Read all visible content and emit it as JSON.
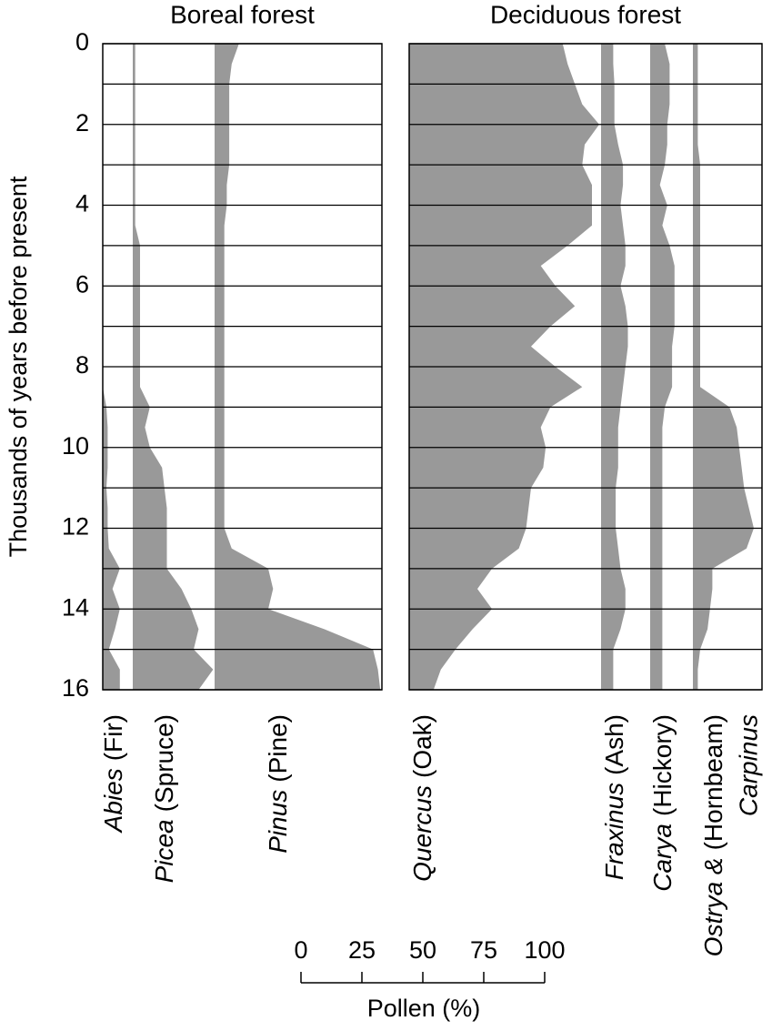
{
  "chart_data": {
    "type": "pollen",
    "ylabel": "Thousands of years before present",
    "xlabel": "Pollen (%)",
    "ylim": [
      0,
      16
    ],
    "yticks": [
      0,
      2,
      4,
      6,
      8,
      10,
      12,
      14,
      16
    ],
    "minor_yticks": [
      1,
      3,
      5,
      7,
      9,
      11,
      13,
      15
    ],
    "xlim": [
      0,
      100
    ],
    "xticks": [
      0,
      25,
      50,
      75,
      100
    ],
    "color": "#999999",
    "ages": [
      0,
      0.5,
      1,
      1.5,
      2,
      2.5,
      3,
      3.5,
      4,
      4.5,
      5,
      5.5,
      6,
      6.5,
      7,
      7.5,
      8,
      8.5,
      9,
      9.5,
      10,
      10.5,
      11,
      11.5,
      12,
      12.5,
      13,
      13.5,
      14,
      14.5,
      15,
      15.5,
      16
    ],
    "panels": [
      {
        "title": "Boreal forest",
        "taxa": [
          {
            "genus": "Abies",
            "common": "(Fir)",
            "values": [
              0,
              0,
              0,
              0,
              0,
              0,
              0,
              0,
              0,
              0,
              0,
              0,
              0,
              0,
              0,
              0,
              0,
              0,
              1.5,
              2,
              2,
              2,
              1.5,
              2,
              2,
              2.5,
              7,
              4,
              7,
              5,
              2.5,
              7,
              7
            ]
          },
          {
            "genus": "Picea",
            "common": "(Spruce)",
            "values": [
              1,
              1,
              1,
              1,
              1,
              1,
              1,
              1,
              1,
              1,
              3,
              3,
              3,
              3,
              3,
              3,
              3,
              3,
              7,
              5,
              7,
              12,
              13,
              14,
              14,
              14,
              14,
              20,
              24,
              27,
              25,
              33,
              27
            ]
          },
          {
            "genus": "Pinus",
            "common": "(Pine)",
            "values": [
              10,
              7,
              6,
              6,
              6,
              6,
              6,
              5,
              5,
              4,
              4,
              4,
              4,
              4,
              4,
              4,
              4,
              4,
              4,
              4,
              4,
              4,
              4,
              4,
              4,
              7,
              22,
              24,
              22,
              45,
              65,
              67,
              68
            ]
          }
        ]
      },
      {
        "title": "Deciduous forest",
        "taxa": [
          {
            "genus": "Quercus",
            "common": "(Oak)",
            "values": [
              63,
              65,
              68,
              71,
              78,
              72,
              71,
              75,
              75,
              75,
              65,
              54,
              60,
              68,
              58,
              50,
              60,
              71,
              58,
              54,
              56,
              55,
              50,
              49,
              48,
              45,
              34,
              28,
              34,
              26,
              19,
              13,
              10
            ]
          },
          {
            "genus": "Fraxinus",
            "common": "(Ash)",
            "values": [
              5,
              5,
              5.5,
              5.5,
              5.5,
              7,
              9,
              9,
              8,
              9,
              10,
              10,
              8,
              10,
              11,
              11,
              10,
              9,
              8,
              7,
              7,
              7,
              6,
              6,
              6,
              7,
              8,
              10,
              10,
              8,
              5,
              5,
              5
            ]
          },
          {
            "genus": "Carya",
            "common": "(Hickory)",
            "values": [
              6,
              8,
              8,
              8,
              7,
              7,
              6,
              4,
              7,
              5,
              8,
              10,
              10,
              10,
              10,
              9,
              9,
              9,
              6,
              5,
              5,
              5,
              5,
              5,
              5,
              5,
              5,
              5,
              5,
              5,
              5,
              5,
              5
            ]
          },
          {
            "genus": "Ostrya &",
            "common": "(Hornbeam)",
            "genus2": "Carpinus",
            "values": [
              2,
              2,
              2,
              2,
              2,
              2,
              3,
              3,
              3,
              3,
              3,
              3,
              3,
              3,
              3,
              3,
              3,
              3,
              15,
              18,
              19,
              20,
              21,
              23,
              25,
              22,
              8,
              8,
              7,
              6,
              3,
              2,
              2
            ]
          }
        ]
      }
    ]
  }
}
